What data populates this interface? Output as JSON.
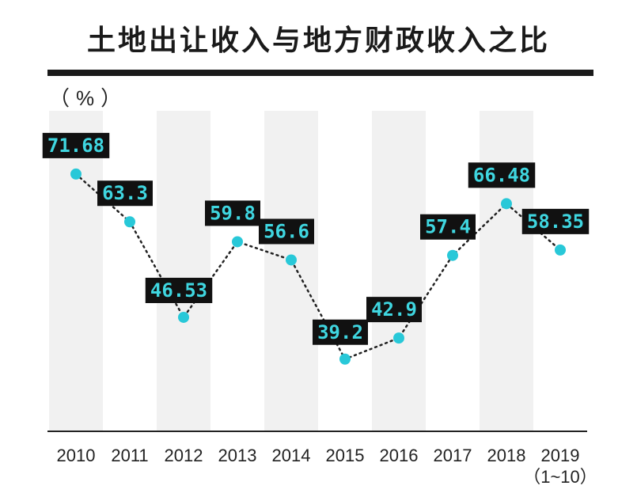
{
  "chart_data": {
    "type": "line",
    "title": "土地出让收入与地方财政收入之比",
    "unit": "（%）",
    "categories": [
      "2010",
      "2011",
      "2012",
      "2013",
      "2014",
      "2015",
      "2016",
      "2017",
      "2018",
      "2019"
    ],
    "category_sublabels": [
      "",
      "",
      "",
      "",
      "",
      "",
      "",
      "",
      "",
      "（1~10）"
    ],
    "series": [
      {
        "values": [
          71.68,
          63.3,
          46.53,
          59.8,
          56.6,
          39.2,
          42.9,
          57.4,
          66.48,
          58.35
        ],
        "labels": [
          "71.68",
          "63.3",
          "46.53",
          "59.8",
          "56.6",
          "39.2",
          "42.9",
          "57.4",
          "66.48",
          "58.35"
        ]
      }
    ],
    "ylim": [
      30,
      80
    ],
    "grid": "vertical bands",
    "colors": {
      "marker": "#28c8d8",
      "label_bg": "#111111",
      "label_text": "#3fd6e0",
      "line": "#222222",
      "band": "#f1f1f1"
    }
  }
}
